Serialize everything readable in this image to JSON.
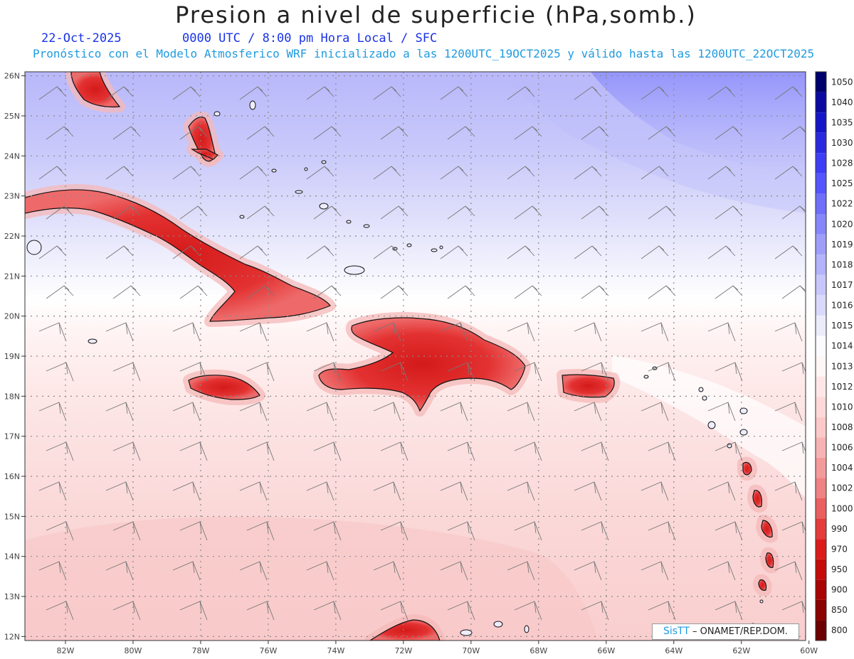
{
  "title": "Presion a nivel de superficie (hPa,somb.)",
  "date": "22-Oct-2025",
  "valid_time": "0000 UTC / 8:00 pm Hora Local / SFC",
  "forecast_note": "Pronóstico con el Modelo Atmosferico WRF inicializado a las 1200UTC_19OCT2025 y válido hasta las  1200UTC_22OCT2025",
  "credit": {
    "brand": "SisTT",
    "org": "– ONAMET/REP.DOM."
  },
  "map": {
    "lon_ticks": [
      "82W",
      "80W",
      "78W",
      "76W",
      "74W",
      "72W",
      "70W",
      "68W",
      "66W",
      "64W",
      "62W",
      "60W"
    ],
    "lat_ticks": [
      "26N",
      "25N",
      "24N",
      "23N",
      "22N",
      "21N",
      "20N",
      "19N",
      "18N",
      "17N",
      "16N",
      "15N",
      "14N",
      "13N",
      "12N"
    ],
    "lon_range": [
      -83.2,
      -60.1
    ],
    "lat_range": [
      11.9,
      26.1
    ]
  },
  "colorbar": {
    "levels": [
      "1050",
      "1040",
      "1035",
      "1030",
      "1028",
      "1025",
      "1022",
      "1020",
      "1019",
      "1018",
      "1017",
      "1016",
      "1015",
      "1014",
      "1013",
      "1012",
      "1010",
      "1008",
      "1006",
      "1004",
      "1002",
      "1000",
      "990",
      "970",
      "950",
      "900",
      "850",
      "800"
    ],
    "colors": [
      "#01016b",
      "#0a0aa0",
      "#1515c8",
      "#2929e0",
      "#3e3ef5",
      "#5555ff",
      "#6f6ffa",
      "#8787fb",
      "#9e9efa",
      "#b3b3fb",
      "#c7c7fb",
      "#d9d9fb",
      "#ebebfc",
      "#fafaff",
      "#fff6f6",
      "#ffe7e7",
      "#fdd9d9",
      "#fbc9c9",
      "#f7b3b3",
      "#f39b9b",
      "#ef8282",
      "#ea5f5f",
      "#e43c3c",
      "#db1b1b",
      "#c50a0a",
      "#a80404",
      "#8a0202",
      "#6c0000"
    ]
  }
}
